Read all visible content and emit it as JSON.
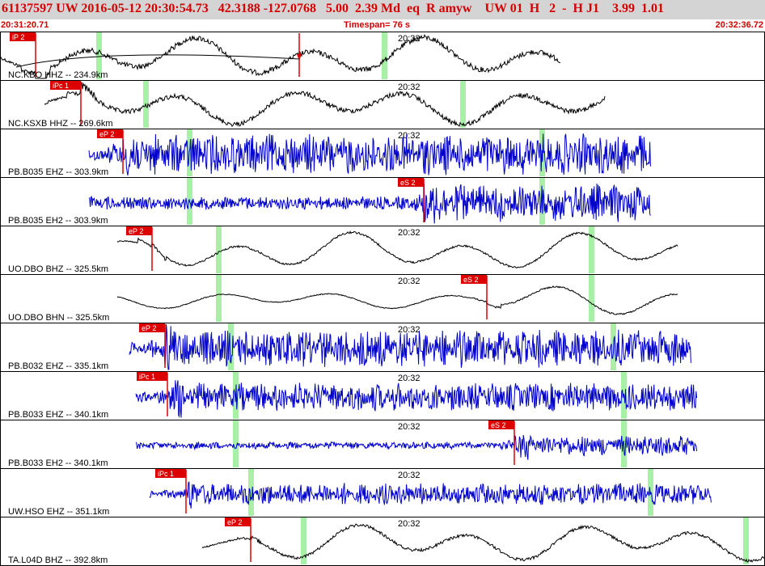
{
  "header": {
    "event_line": "61137597 UW 2016-05-12 20:30:54.73   42.3188 -127.0768   5.00  2.39 Md  eq  R amyw    UW 01  H   2  -  H J1    3.99  1.01"
  },
  "timebar": {
    "start_time": "20:31:20.71",
    "timespan": "Timespan=  76 s",
    "end_time": "20:32:36.72"
  },
  "colors": {
    "header_bg": "#d4d4d4",
    "header_text": "#d40000",
    "pick_box": "#dd0000",
    "pick_line": "#dd0000",
    "marker_bar": "#a8f0a8",
    "trace_black": "#000000",
    "trace_blue": "#0000cc"
  },
  "minute_label": "20:32",
  "traces": [
    {
      "label": "NC.KBO HHZ -- 234.9km",
      "color": "black",
      "start": 0,
      "end": 693,
      "amp": 26,
      "noise": 0.25,
      "smooth": 1,
      "picks": [
        {
          "text": "iP 2",
          "x": 44
        },
        {
          "text": "",
          "x": 370
        }
      ],
      "greens": [
        122,
        475
      ],
      "curve": true
    },
    {
      "label": "NC.KSXB HHZ -- 269.6km",
      "color": "black",
      "start": 55,
      "end": 748,
      "amp": 24,
      "noise": 0.25,
      "smooth": 1,
      "picks": [
        {
          "text": "iPc 1",
          "x": 100
        }
      ],
      "greens": [
        180,
        572
      ],
      "curve": false
    },
    {
      "label": "PB.B035 EHZ -- 303.9km",
      "color": "blue",
      "start": 110,
      "end": 805,
      "amp": 26,
      "noise": 1,
      "smooth": 0,
      "picks": [
        {
          "text": "eP 2",
          "x": 152
        }
      ],
      "greens": [
        234,
        670
      ],
      "curve": false
    },
    {
      "label": "PB.B035 EH2 -- 303.9km",
      "color": "blue",
      "start": 110,
      "end": 805,
      "amp": 24,
      "noise": 1,
      "smooth": 0,
      "picks": [
        {
          "text": "eS 2",
          "x": 524
        }
      ],
      "greens": [
        234,
        670
      ],
      "curve": false
    },
    {
      "label": "UO.DBO BHZ -- 325.5km",
      "color": "black",
      "start": 145,
      "end": 838,
      "amp": 25,
      "noise": 0.1,
      "smooth": 1,
      "picks": [
        {
          "text": "eP 2",
          "x": 188
        }
      ],
      "greens": [
        270,
        731
      ],
      "curve": false
    },
    {
      "label": "UO.DBO BHN -- 325.5km",
      "color": "black",
      "start": 145,
      "end": 838,
      "amp": 20,
      "noise": 0.1,
      "smooth": 1,
      "picks": [
        {
          "text": "eS 2",
          "x": 602
        }
      ],
      "greens": [
        270,
        731
      ],
      "curve": false
    },
    {
      "label": "PB.B032 EHZ -- 335.1km",
      "color": "blue",
      "start": 160,
      "end": 855,
      "amp": 24,
      "noise": 1,
      "smooth": 0,
      "picks": [
        {
          "text": "eP 2",
          "x": 204
        }
      ],
      "greens": [
        285,
        758
      ],
      "curve": false
    },
    {
      "label": "PB.B033 EHZ -- 340.1km",
      "color": "blue",
      "start": 168,
      "end": 862,
      "amp": 18,
      "noise": 1,
      "smooth": 0,
      "picks": [
        {
          "text": "iPc 1",
          "x": 207
        }
      ],
      "greens": [
        291,
        771
      ],
      "curve": false
    },
    {
      "label": "PB.B033 EH2 -- 340.1km",
      "color": "blue",
      "start": 168,
      "end": 862,
      "amp": 13,
      "noise": 1,
      "smooth": 0,
      "picks": [
        {
          "text": "eS 2",
          "x": 636
        }
      ],
      "greens": [
        291,
        771
      ],
      "curve": false
    },
    {
      "label": "UW.HSO EHZ -- 351.1km",
      "color": "blue",
      "start": 185,
      "end": 880,
      "amp": 14,
      "noise": 1,
      "smooth": 0,
      "picks": [
        {
          "text": "iPc 1",
          "x": 230
        }
      ],
      "greens": [
        310,
        804
      ],
      "curve": false
    },
    {
      "label": "TA.L04D BHZ -- 392.8km",
      "color": "black",
      "start": 250,
      "end": 946,
      "amp": 24,
      "noise": 0.15,
      "smooth": 1,
      "picks": [
        {
          "text": "eP 2",
          "x": 310
        }
      ],
      "greens": [
        375,
        922
      ],
      "curve": false
    }
  ]
}
